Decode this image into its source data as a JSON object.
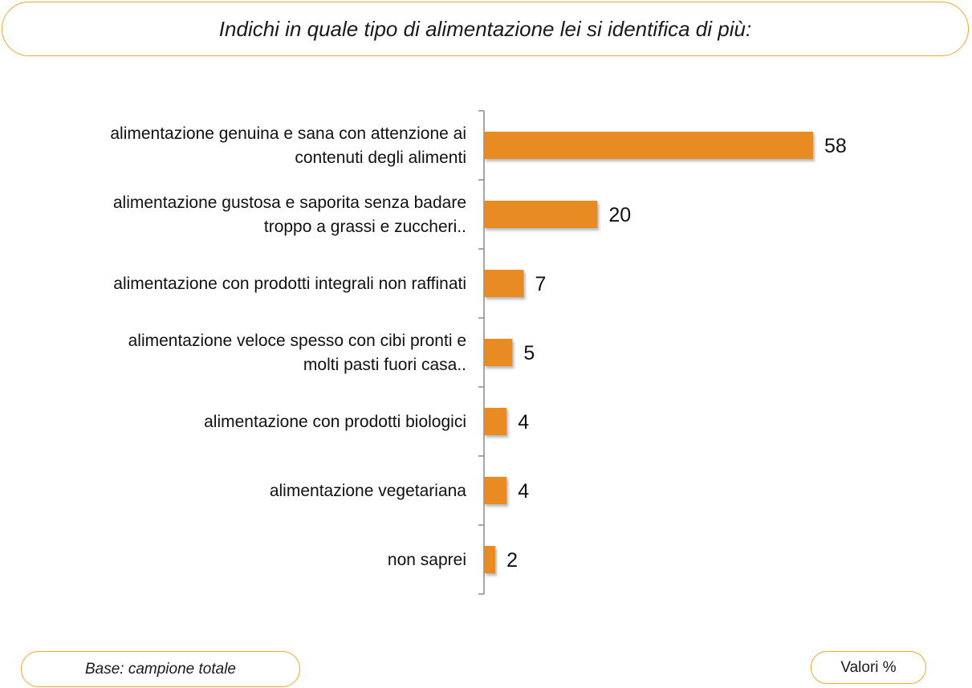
{
  "question": "Indichi in quale tipo di alimentazione lei si identifica di più:",
  "base_note": "Base: campione totale",
  "unit_note": "Valori %",
  "colors": {
    "bar": "#e88b22",
    "accent_border": "#f0a530",
    "axis": "#8a8a8a"
  },
  "chart_data": {
    "type": "bar",
    "orientation": "horizontal",
    "categories": [
      [
        "alimentazione genuina e sana con attenzione ai",
        "contenuti degli alimenti"
      ],
      [
        "alimentazione gustosa e saporita senza badare",
        "troppo a grassi e zuccheri.."
      ],
      [
        "alimentazione con prodotti integrali non raffinati"
      ],
      [
        "alimentazione veloce spesso con cibi pronti e",
        "molti pasti fuori casa.."
      ],
      [
        "alimentazione con prodotti biologici"
      ],
      [
        "alimentazione vegetariana"
      ],
      [
        "non saprei"
      ]
    ],
    "values": [
      58,
      20,
      7,
      5,
      4,
      4,
      2
    ],
    "data_labels": [
      "58",
      "20",
      "7",
      "5",
      "4",
      "4",
      "2"
    ],
    "xlim": [
      0,
      58
    ],
    "grid": false,
    "legend": "none"
  }
}
